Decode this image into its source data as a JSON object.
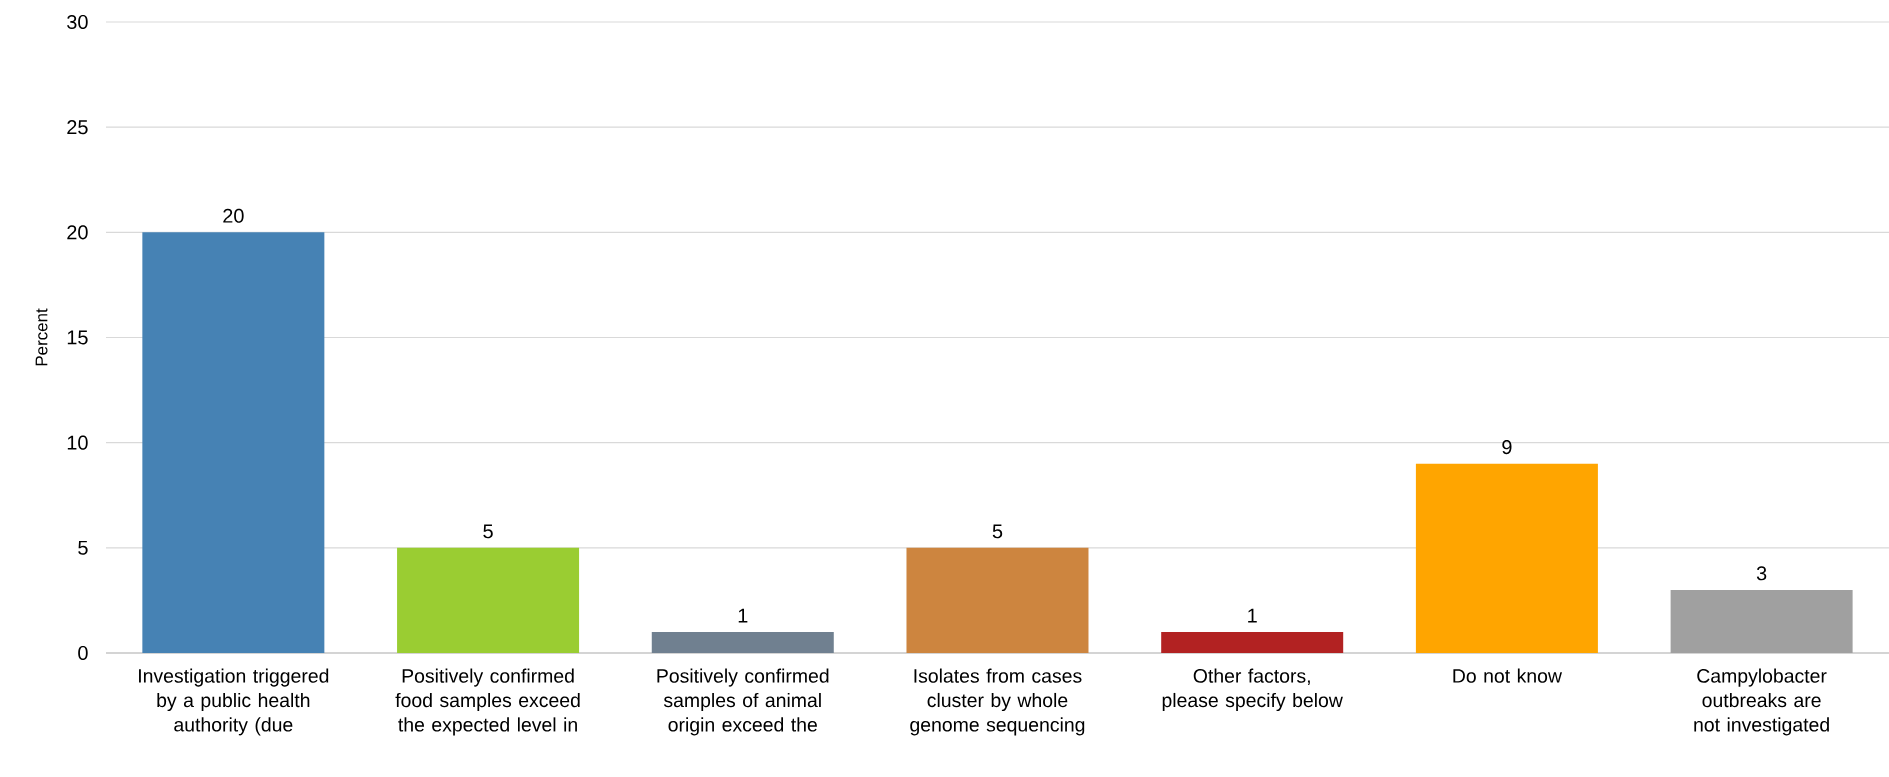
{
  "chart_data": {
    "type": "bar",
    "ylabel": "Percent",
    "categories": [
      "Investigation triggered by a public health authority (due",
      "Positively confirmed food samples exceed the expected level in",
      "Positively confirmed samples of animal origin exceed the",
      "Isolates from cases cluster by whole genome sequencing",
      "Other factors, please specify below",
      "Do not know",
      "Campylobacter outbreaks are not investigated"
    ],
    "values": [
      20,
      5,
      1,
      5,
      1,
      9,
      3
    ],
    "colors": [
      "#4682b4",
      "#9acd32",
      "#708090",
      "#cd853f",
      "#b22222",
      "#ffa500",
      "#a0a0a0"
    ],
    "ylim": [
      0,
      30
    ],
    "yticks": [
      0,
      5,
      10,
      15,
      20,
      25,
      30
    ],
    "grid": "y",
    "data_labels": true
  }
}
